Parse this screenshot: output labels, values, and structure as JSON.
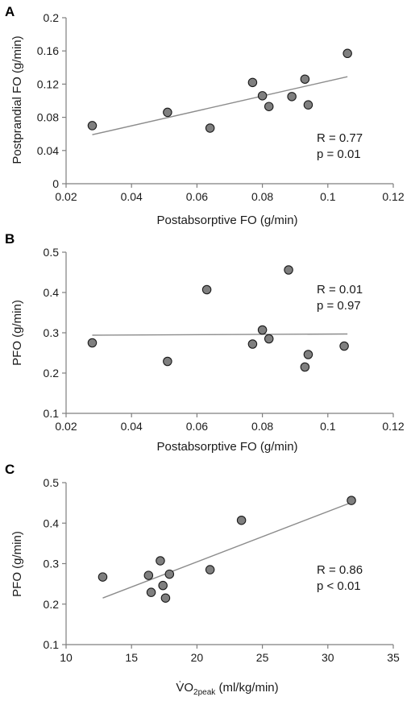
{
  "chart_data": [
    {
      "type": "scatter",
      "panel": "A",
      "xlabel": "Postabsorptive FO (g/min)",
      "ylabel": "Postprandial FO (g/min)",
      "xlim": [
        0.02,
        0.12
      ],
      "ylim": [
        0,
        0.2
      ],
      "xticks": [
        0.02,
        0.04,
        0.06,
        0.08,
        0.1,
        0.12
      ],
      "yticks": [
        0,
        0.04,
        0.08,
        0.12,
        0.16,
        0.2
      ],
      "xtick_labels": [
        "0.02",
        "0.04",
        "0.06",
        "0.08",
        "0.1",
        "0.12"
      ],
      "ytick_labels": [
        "0",
        "0.04",
        "0.08",
        "0.12",
        "0.16",
        "0.2"
      ],
      "points": [
        {
          "x": 0.028,
          "y": 0.07
        },
        {
          "x": 0.051,
          "y": 0.086
        },
        {
          "x": 0.064,
          "y": 0.067
        },
        {
          "x": 0.077,
          "y": 0.122
        },
        {
          "x": 0.08,
          "y": 0.106
        },
        {
          "x": 0.082,
          "y": 0.093
        },
        {
          "x": 0.089,
          "y": 0.105
        },
        {
          "x": 0.093,
          "y": 0.126
        },
        {
          "x": 0.094,
          "y": 0.095
        },
        {
          "x": 0.106,
          "y": 0.157
        }
      ],
      "trendline": {
        "x": [
          0.028,
          0.106
        ],
        "y": [
          0.059,
          0.129
        ]
      },
      "annotation_lines": [
        "R = 0.77",
        "p = 0.01"
      ],
      "grid": false
    },
    {
      "type": "scatter",
      "panel": "B",
      "xlabel": "Postabsorptive FO (g/min)",
      "ylabel": "PFO (g/min)",
      "xlim": [
        0.02,
        0.12
      ],
      "ylim": [
        0.1,
        0.5
      ],
      "xticks": [
        0.02,
        0.04,
        0.06,
        0.08,
        0.1,
        0.12
      ],
      "yticks": [
        0.1,
        0.2,
        0.3,
        0.4,
        0.5
      ],
      "xtick_labels": [
        "0.02",
        "0.04",
        "0.06",
        "0.08",
        "0.1",
        "0.12"
      ],
      "ytick_labels": [
        "0.1",
        "0.2",
        "0.3",
        "0.4",
        "0.5"
      ],
      "points": [
        {
          "x": 0.028,
          "y": 0.275
        },
        {
          "x": 0.051,
          "y": 0.229
        },
        {
          "x": 0.063,
          "y": 0.407
        },
        {
          "x": 0.077,
          "y": 0.272
        },
        {
          "x": 0.08,
          "y": 0.307
        },
        {
          "x": 0.082,
          "y": 0.285
        },
        {
          "x": 0.088,
          "y": 0.456
        },
        {
          "x": 0.093,
          "y": 0.215
        },
        {
          "x": 0.094,
          "y": 0.246
        },
        {
          "x": 0.105,
          "y": 0.267
        }
      ],
      "trendline": {
        "x": [
          0.028,
          0.106
        ],
        "y": [
          0.294,
          0.297
        ]
      },
      "annotation_lines": [
        "R = 0.01",
        "p = 0.97"
      ],
      "grid": false
    },
    {
      "type": "scatter",
      "panel": "C",
      "xlabel_main": "V̇O",
      "xlabel_sub": "2peak",
      "xlabel_rest": " (ml/kg/min)",
      "ylabel": "PFO (g/min)",
      "xlim": [
        10,
        35
      ],
      "ylim": [
        0.1,
        0.5
      ],
      "xticks": [
        10,
        15,
        20,
        25,
        30,
        35
      ],
      "yticks": [
        0.1,
        0.2,
        0.3,
        0.4,
        0.5
      ],
      "xtick_labels": [
        "10",
        "15",
        "20",
        "25",
        "30",
        "35"
      ],
      "ytick_labels": [
        "0.1",
        "0.2",
        "0.3",
        "0.4",
        "0.5"
      ],
      "points": [
        {
          "x": 12.8,
          "y": 0.267
        },
        {
          "x": 16.3,
          "y": 0.271
        },
        {
          "x": 16.5,
          "y": 0.229
        },
        {
          "x": 17.2,
          "y": 0.307
        },
        {
          "x": 17.4,
          "y": 0.246
        },
        {
          "x": 17.6,
          "y": 0.215
        },
        {
          "x": 17.9,
          "y": 0.274
        },
        {
          "x": 21.0,
          "y": 0.285
        },
        {
          "x": 23.4,
          "y": 0.407
        },
        {
          "x": 31.8,
          "y": 0.456
        }
      ],
      "trendline": {
        "x": [
          12.8,
          31.8
        ],
        "y": [
          0.215,
          0.451
        ]
      },
      "annotation_lines": [
        "R = 0.86",
        "p < 0.01"
      ],
      "grid": false
    }
  ]
}
